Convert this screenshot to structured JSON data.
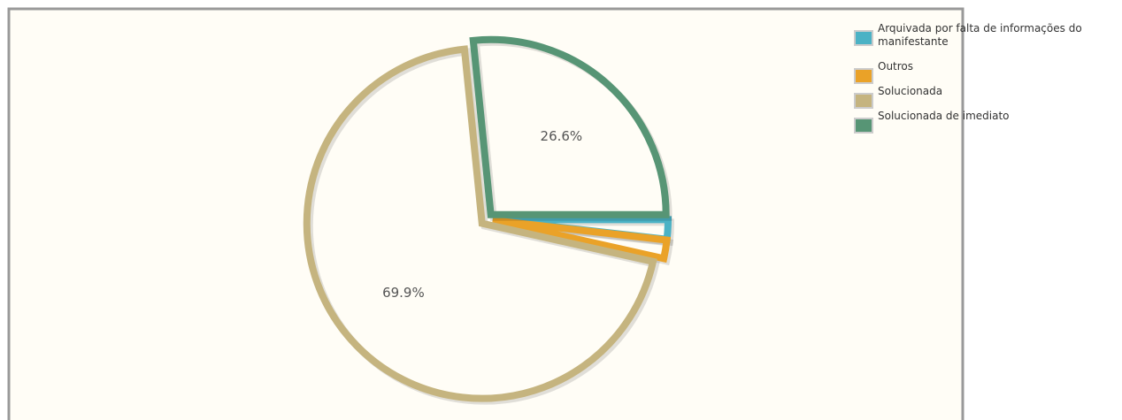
{
  "chart_data": {
    "type": "pie",
    "categories": [
      "Arquivada por falta de informações do manifestante",
      "Outros",
      "Solucionada",
      "Solucionada de imediato"
    ],
    "values": [
      1.8,
      1.7,
      69.9,
      26.6
    ],
    "value_labels": [
      null,
      null,
      "69.9%",
      "26.6%"
    ],
    "colors": [
      "#4bb2c5",
      "#eaa228",
      "#c5b47f",
      "#579575"
    ],
    "legend": "top-right"
  }
}
